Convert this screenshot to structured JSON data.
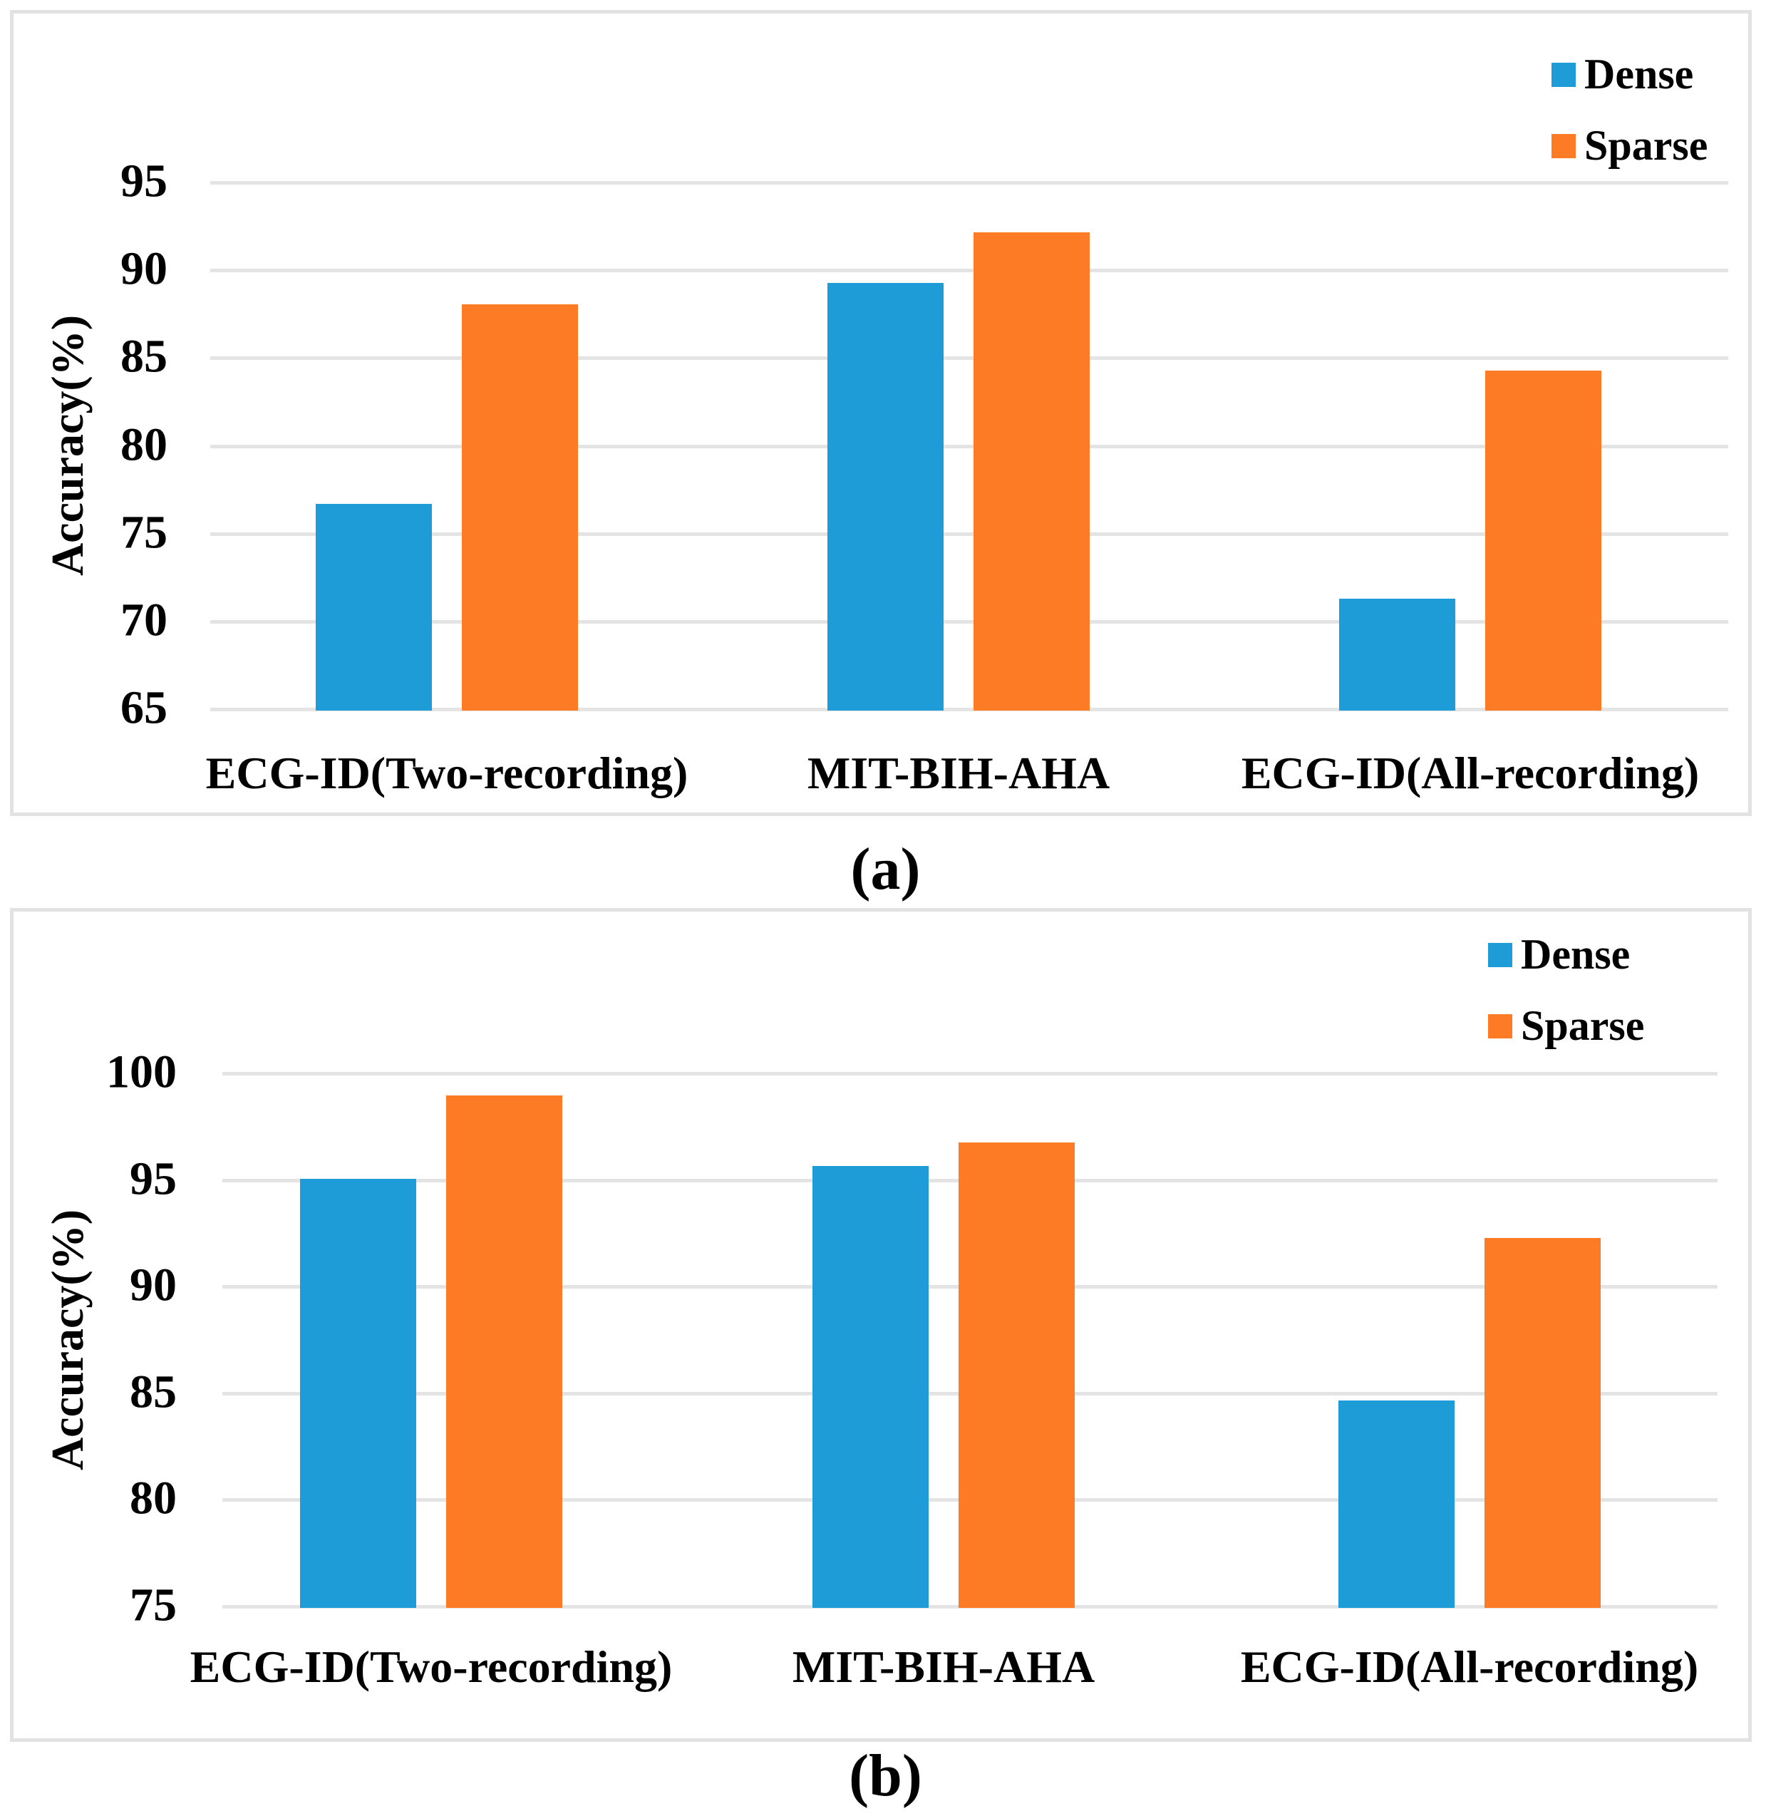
{
  "figure": {
    "background": "#ffffff",
    "text_color": "#000000"
  },
  "colors": {
    "dense": "#1d9cd8",
    "sparse": "#fd7b25",
    "gridline": "#e4e4e4",
    "panel_border": "#e2e2e2"
  },
  "chart_data": [
    {
      "id": "a",
      "type": "bar",
      "caption": "(a)",
      "title": "",
      "xlabel": "",
      "ylabel": "Accuracy(%)",
      "categories": [
        "ECG-ID(Two-recording)",
        "MIT-BIH-AHA",
        "ECG-ID(All-recording)"
      ],
      "series": [
        {
          "name": "Dense",
          "color": "dense",
          "values": [
            76.6,
            89.2,
            71.2
          ]
        },
        {
          "name": "Sparse",
          "color": "sparse",
          "values": [
            88.0,
            92.1,
            84.2
          ]
        }
      ],
      "yticks": [
        65,
        70,
        75,
        80,
        85,
        90,
        95
      ],
      "ylim": [
        65,
        97.5
      ],
      "grid": true,
      "legend_position": "top-right",
      "legend_entries": [
        "Dense",
        "Sparse"
      ]
    },
    {
      "id": "b",
      "type": "bar",
      "caption": "(b)",
      "title": "",
      "xlabel": "",
      "ylabel": "Accuracy(%)",
      "categories": [
        "ECG-ID(Two-recording)",
        "MIT-BIH-AHA",
        "ECG-ID(All-recording)"
      ],
      "series": [
        {
          "name": "Dense",
          "color": "dense",
          "values": [
            95.0,
            95.6,
            84.6
          ]
        },
        {
          "name": "Sparse",
          "color": "sparse",
          "values": [
            98.9,
            96.7,
            92.2
          ]
        }
      ],
      "yticks": [
        75,
        80,
        85,
        90,
        95,
        100
      ],
      "ylim": [
        75,
        102.5
      ],
      "grid": true,
      "legend_position": "top-right",
      "legend_entries": [
        "Dense",
        "Sparse"
      ]
    }
  ]
}
